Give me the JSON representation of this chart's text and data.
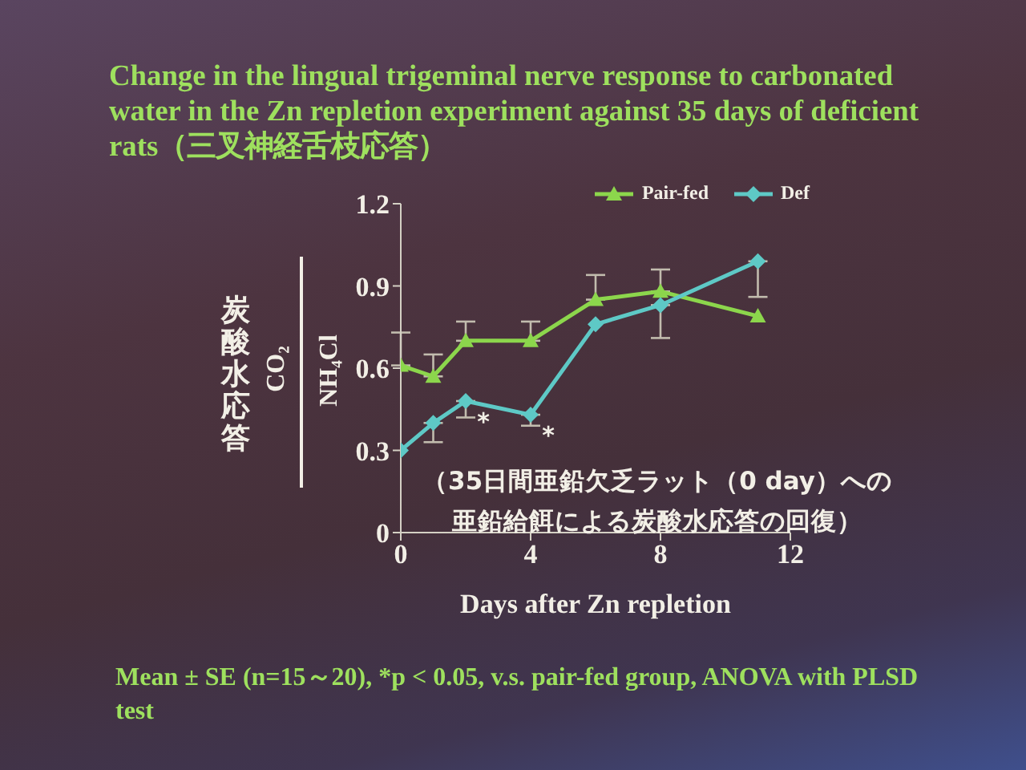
{
  "chart_data": {
    "type": "line",
    "title": "Change in the lingual trigeminal nerve response to carbonated water in the Zn repletion experiment against 35 days of deficient rats（三叉神経舌枝応答）",
    "xlabel": "Days after Zn repletion",
    "ylabel": "炭酸水応答",
    "x": [
      0,
      1,
      2,
      4,
      6,
      8,
      11
    ],
    "series": [
      {
        "name": "Pair-fed",
        "color": "#8cd64c",
        "marker": "triangle",
        "values": [
          0.61,
          0.57,
          0.7,
          0.7,
          0.85,
          0.88,
          0.79
        ],
        "errors": [
          [
            0.61,
            0.73
          ],
          [
            0.57,
            0.65
          ],
          [
            0.7,
            0.77
          ],
          [
            0.7,
            0.77
          ],
          [
            0.85,
            0.94
          ],
          [
            0.88,
            0.96
          ],
          null
        ]
      },
      {
        "name": "Def",
        "color": "#5ec9c6",
        "marker": "diamond",
        "values": [
          0.3,
          0.4,
          0.48,
          0.43,
          0.76,
          0.83,
          0.99
        ],
        "errors": [
          null,
          [
            0.33,
            0.4
          ],
          [
            0.42,
            0.48
          ],
          [
            0.39,
            0.43
          ],
          null,
          [
            0.71,
            0.83
          ],
          [
            0.86,
            0.99
          ]
        ]
      }
    ],
    "xlim": [
      0,
      12
    ],
    "xticks": [
      0,
      4,
      8,
      12
    ],
    "ylim": [
      0,
      1.2
    ],
    "yticks": [
      0,
      0.3,
      0.6,
      0.9,
      1.2
    ],
    "legend": "top right",
    "annotations": [
      {
        "text": "*",
        "x": 2,
        "y": 0.48
      },
      {
        "text": "*",
        "x": 4,
        "y": 0.43
      },
      "CO₂",
      "NH₄Cl",
      "（35日間亜鉛欠乏ラット（0 day）への",
      "亜鉛給餌による炭酸水応答の回復）",
      "Mean ± SE (n=15～20), *p < 0.05, v.s. pair-fed group, ANOVA with PLSD test"
    ]
  }
}
